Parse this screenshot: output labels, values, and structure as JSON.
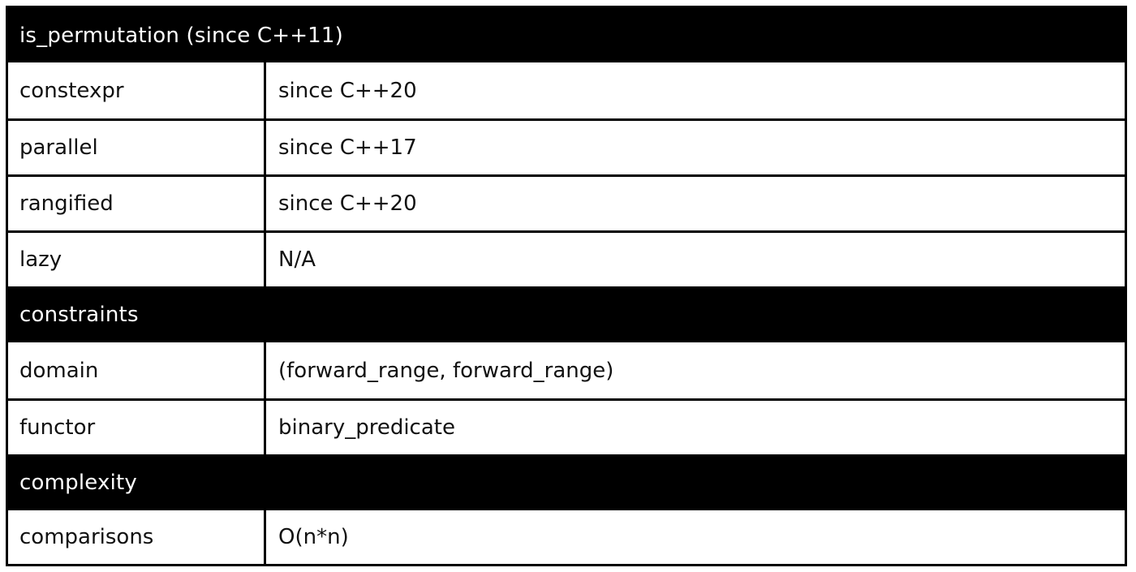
{
  "sections": {
    "title": "is_permutation (since C++11)",
    "constraints": "constraints",
    "complexity": "complexity"
  },
  "properties": [
    {
      "key": "constexpr",
      "value": "since C++20"
    },
    {
      "key": "parallel",
      "value": "since C++17"
    },
    {
      "key": "rangified",
      "value": "since C++20"
    },
    {
      "key": "lazy",
      "value": "N/A"
    }
  ],
  "constraints": [
    {
      "key": "domain",
      "value": "(forward_range, forward_range)"
    },
    {
      "key": "functor",
      "value": "binary_predicate"
    }
  ],
  "complexity": [
    {
      "key": "comparisons",
      "value": "O(n*n)"
    }
  ]
}
